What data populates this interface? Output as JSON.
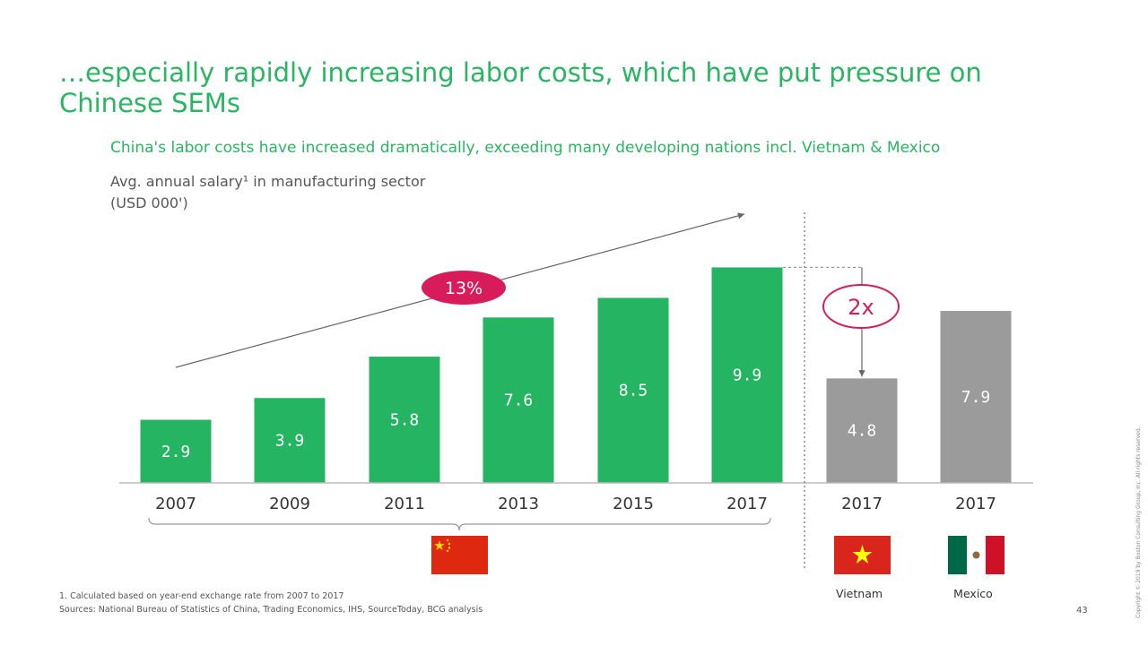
{
  "title": "…especially rapidly increasing labor costs, which have put pressure on Chinese SEMs",
  "subtitle": "China's labor costs have increased dramatically, exceeding many developing nations incl. Vietnam & Mexico",
  "ylabel_line1": "Avg. annual salary¹ in manufacturing sector",
  "ylabel_line2": "(USD 000')",
  "colors": {
    "accent": "#29b562",
    "china_bar": "#25b562",
    "other_bar": "#9b9b9b",
    "callout": "#d81b5a"
  },
  "chart_data": {
    "type": "bar",
    "title": "China's labor costs have increased dramatically, exceeding many developing nations incl. Vietnam & Mexico",
    "ylabel": "Avg. annual salary¹ in manufacturing sector (USD 000')",
    "categories": [
      "2007",
      "2009",
      "2011",
      "2013",
      "2015",
      "2017",
      "2017",
      "2017"
    ],
    "values": [
      2.9,
      3.9,
      5.8,
      7.6,
      8.5,
      9.9,
      4.8,
      7.9
    ],
    "groups": [
      "China",
      "China",
      "China",
      "China",
      "China",
      "China",
      "Vietnam",
      "Mexico"
    ],
    "value_labels": [
      "2.9",
      "3.9",
      "5.8",
      "7.6",
      "8.5",
      "9.9",
      "4.8",
      "7.9"
    ],
    "annotations": {
      "cagr": "13%",
      "multiple": "2x"
    },
    "ylim": [
      0,
      10.5
    ],
    "grid": false,
    "legend": "none"
  },
  "countries": {
    "vietnam": "Vietnam",
    "mexico": "Mexico"
  },
  "footnote1": "1. Calculated based on year-end exchange rate from 2007 to 2017",
  "sources": "Sources: National Bureau of Statistics of China, Trading Economics, IHS, SourceToday, BCG analysis",
  "page_number": "43",
  "copyright": "Copyright © 2019 by Boston Consulting Group, Inc. All rights reserved."
}
